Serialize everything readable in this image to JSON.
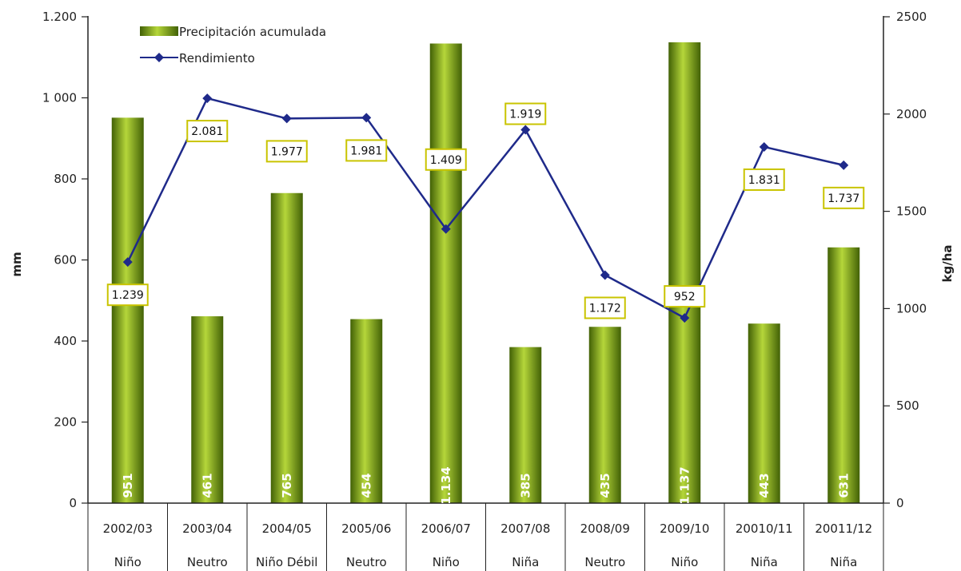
{
  "chart_data": {
    "type": "bar",
    "categories": [
      "2002/03",
      "2003/04",
      "2004/05",
      "2005/06",
      "2006/07",
      "2007/08",
      "2008/09",
      "2009/10",
      "20010/11",
      "20011/12"
    ],
    "phases": [
      "Niño",
      "Neutro",
      "Niño Débil",
      "Neutro",
      "Niño",
      "Niña",
      "Neutro",
      "Niño",
      "Niña",
      "Niña"
    ],
    "series": [
      {
        "name": "Precipitación acumulada",
        "type": "bar",
        "axis": "left",
        "values": [
          951,
          461,
          765,
          454,
          1134,
          385,
          435,
          1137,
          443,
          631
        ],
        "labels": [
          "951",
          "461",
          "765",
          "454",
          "1.134",
          "385",
          "435",
          "1.137",
          "443",
          "631"
        ]
      },
      {
        "name": "Rendimiento",
        "type": "line",
        "axis": "right",
        "values": [
          1239,
          2081,
          1977,
          1981,
          1409,
          1919,
          1172,
          952,
          1831,
          1737
        ],
        "labels": [
          "1.239",
          "2.081",
          "1.977",
          "1.981",
          "1.409",
          "1.919",
          "1.172",
          "952",
          "1.831",
          "1.737"
        ]
      }
    ],
    "ylabel": "mm",
    "y2label": "kg/ha",
    "ylim": [
      0,
      1200
    ],
    "y2lim": [
      0,
      2500
    ],
    "yticks": [
      0,
      200,
      400,
      600,
      800,
      1000,
      1200
    ],
    "ytick_labels": [
      "0",
      "200",
      "400",
      "600",
      "800",
      "1 000",
      "1.200"
    ],
    "y2ticks": [
      0,
      500,
      1000,
      1500,
      2000,
      2500
    ],
    "y2tick_labels": [
      "0",
      "500",
      "1000",
      "1500",
      "2000",
      "2500"
    ],
    "legend_position": "top-left",
    "grid": false,
    "colors": {
      "bar_light": "#b5d63a",
      "bar_mid": "#79a812",
      "bar_dark": "#426106",
      "line": "#1f2a8a",
      "marker": "#1f2a8a",
      "label_box_border": "#c9c400",
      "label_box_fill": "#ffffff",
      "axis": "#222222"
    }
  }
}
